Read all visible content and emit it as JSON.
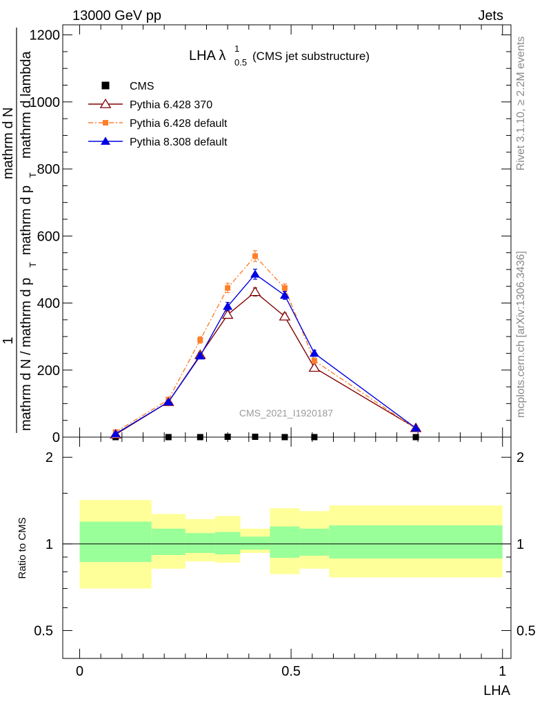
{
  "header": {
    "left": "13000 GeV pp",
    "right": "Jets"
  },
  "side_text": {
    "rivet": "Rivet 3.1.10, ≥ 2.2M events",
    "mcplots": "mcplots.cern.ch [arXiv:1306.3436]"
  },
  "watermark": "CMS_2021_I1920187",
  "title": {
    "main": "LHA λ",
    "sup": "1",
    "sub": "0.5",
    "suffix": "(CMS jet substructure)"
  },
  "y_label": {
    "numerator_one": "1",
    "line1": "mathrm d N / mathrm d p",
    "line1_sub": "T",
    "line2": "mathrm d N",
    "line3": "mathrm d p",
    "line3_sub": "T",
    "line4": "mathrm d lambda",
    "ratio": "Ratio to CMS"
  },
  "x_label": "LHA",
  "chart_data": [
    {
      "type": "line",
      "panel": "main",
      "xlim": [
        -0.04,
        1.02
      ],
      "ylim": [
        0,
        1230
      ],
      "yticks": [
        0,
        200,
        400,
        600,
        800,
        1000,
        1200
      ],
      "legend_placement": "top-left",
      "series": [
        {
          "name": "CMS",
          "color": "#000000",
          "marker": "square",
          "x": [
            0.085,
            0.21,
            0.285,
            0.35,
            0.415,
            0.485,
            0.555,
            0.795
          ],
          "y": [
            0,
            0,
            0,
            1,
            1,
            0,
            0,
            0
          ]
        },
        {
          "name": "Pythia 6.428 370",
          "color": "#800000",
          "marker": "open-triangle",
          "x": [
            0.085,
            0.21,
            0.285,
            0.35,
            0.415,
            0.485,
            0.555,
            0.795
          ],
          "y": [
            8,
            105,
            245,
            365,
            433,
            360,
            207,
            27
          ],
          "err": [
            2,
            5,
            8,
            10,
            12,
            10,
            7,
            2
          ]
        },
        {
          "name": "Pythia 6.428 default",
          "color": "#ff7f2a",
          "marker": "square",
          "x": [
            0.085,
            0.21,
            0.285,
            0.35,
            0.415,
            0.485,
            0.555,
            0.795
          ],
          "y": [
            15,
            112,
            290,
            445,
            540,
            445,
            228,
            25
          ],
          "err": [
            3,
            6,
            10,
            14,
            16,
            12,
            8,
            2
          ]
        },
        {
          "name": "Pythia 8.308 default",
          "color": "#0000e0",
          "marker": "triangle",
          "x": [
            0.085,
            0.21,
            0.285,
            0.35,
            0.415,
            0.485,
            0.555,
            0.795
          ],
          "y": [
            10,
            105,
            242,
            390,
            486,
            423,
            250,
            27
          ],
          "err": [
            2,
            5,
            8,
            12,
            15,
            12,
            9,
            2
          ]
        }
      ]
    },
    {
      "type": "area",
      "panel": "ratio",
      "ylabel": "Ratio to CMS",
      "yscale": "log",
      "ylim": [
        0.4,
        2.35
      ],
      "yticks": [
        0.5,
        1,
        2
      ],
      "xticks": [
        0,
        0.5,
        1
      ],
      "xlim": [
        -0.04,
        1.02
      ],
      "bands": [
        {
          "x0": 0.0,
          "x1": 0.17,
          "inner": [
            0.865,
            1.195
          ],
          "outer": [
            0.7,
            1.42
          ]
        },
        {
          "x0": 0.17,
          "x1": 0.25,
          "inner": [
            0.915,
            1.13
          ],
          "outer": [
            0.82,
            1.27
          ]
        },
        {
          "x0": 0.25,
          "x1": 0.32,
          "inner": [
            0.93,
            1.09
          ],
          "outer": [
            0.87,
            1.22
          ]
        },
        {
          "x0": 0.32,
          "x1": 0.38,
          "inner": [
            0.92,
            1.1
          ],
          "outer": [
            0.86,
            1.25
          ]
        },
        {
          "x0": 0.38,
          "x1": 0.45,
          "inner": [
            0.955,
            1.06
          ],
          "outer": [
            0.93,
            1.13
          ]
        },
        {
          "x0": 0.45,
          "x1": 0.52,
          "inner": [
            0.895,
            1.15
          ],
          "outer": [
            0.785,
            1.33
          ]
        },
        {
          "x0": 0.52,
          "x1": 0.59,
          "inner": [
            0.91,
            1.13
          ],
          "outer": [
            0.82,
            1.3
          ]
        },
        {
          "x0": 0.59,
          "x1": 1.0,
          "inner": [
            0.89,
            1.16
          ],
          "outer": [
            0.765,
            1.36
          ]
        }
      ],
      "reference_line": 1
    }
  ],
  "colors": {
    "band_inner": "#99ff99",
    "band_outer": "#ffff99"
  }
}
